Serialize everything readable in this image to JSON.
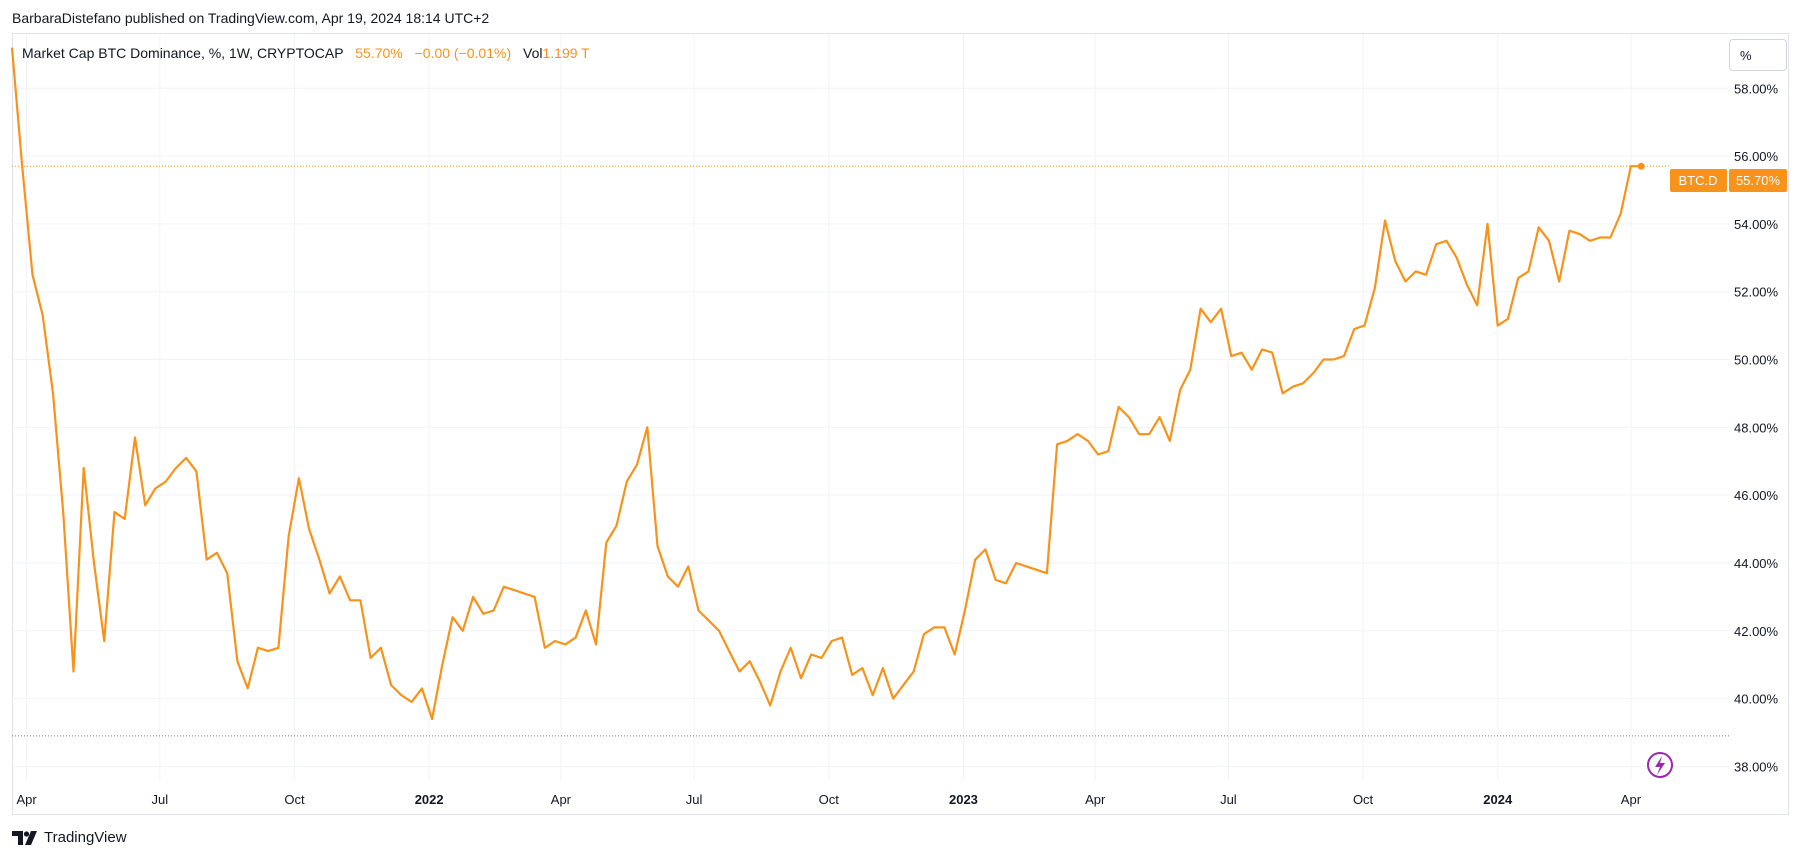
{
  "header": {
    "publisher": "BarbaraDistefano published on TradingView.com, Apr 19, 2024 18:14 UTC+2"
  },
  "legend": {
    "symbol": "Market Cap BTC Dominance, %, 1W, CRYPTOCAP",
    "value": "55.70%",
    "change": "−0.00 (−0.01%)",
    "vol_label": "Vol",
    "vol_value": "1.199 T"
  },
  "scale_button": {
    "label": "%"
  },
  "price_tag": {
    "symbol": "BTC.D",
    "value": "55.70%"
  },
  "footer": {
    "brand": "TradingView"
  },
  "colors": {
    "line": "#f7931a",
    "grid": "#f0f3fa",
    "tag": "#f7931a"
  },
  "icons": {
    "brand_logo": "tradingview-logo-icon",
    "lightning": "lightning-icon"
  },
  "chart_data": {
    "type": "line",
    "title": "Market Cap BTC Dominance, %, 1W, CRYPTOCAP",
    "xlabel": "",
    "ylabel": "",
    "ylim": [
      37.6,
      59.6
    ],
    "y_ticks": [
      {
        "v": 58,
        "label": "58.00%"
      },
      {
        "v": 56,
        "label": "56.00%"
      },
      {
        "v": 54,
        "label": "54.00%"
      },
      {
        "v": 52,
        "label": "52.00%"
      },
      {
        "v": 50,
        "label": "50.00%"
      },
      {
        "v": 48,
        "label": "48.00%"
      },
      {
        "v": 46,
        "label": "46.00%"
      },
      {
        "v": 44,
        "label": "44.00%"
      },
      {
        "v": 42,
        "label": "42.00%"
      },
      {
        "v": 40,
        "label": "40.00%"
      },
      {
        "v": 38,
        "label": "38.00%"
      }
    ],
    "x_ticks": [
      {
        "label": "Apr",
        "date": "2021-04-01",
        "bold": false
      },
      {
        "label": "Jul",
        "date": "2021-07-01",
        "bold": false
      },
      {
        "label": "Oct",
        "date": "2021-10-01",
        "bold": false
      },
      {
        "label": "2022",
        "date": "2022-01-01",
        "bold": true
      },
      {
        "label": "Apr",
        "date": "2022-04-01",
        "bold": false
      },
      {
        "label": "Jul",
        "date": "2022-07-01",
        "bold": false
      },
      {
        "label": "Oct",
        "date": "2022-10-01",
        "bold": false
      },
      {
        "label": "2023",
        "date": "2023-01-01",
        "bold": true
      },
      {
        "label": "Apr",
        "date": "2023-04-01",
        "bold": false
      },
      {
        "label": "Jul",
        "date": "2023-07-01",
        "bold": false
      },
      {
        "label": "Oct",
        "date": "2023-10-01",
        "bold": false
      },
      {
        "label": "2024",
        "date": "2024-01-01",
        "bold": true
      },
      {
        "label": "Apr",
        "date": "2024-04-01",
        "bold": false
      }
    ],
    "xlim": [
      "2021-03-22",
      "2024-06-07"
    ],
    "current_value": 55.7,
    "low_reference": 38.9,
    "series": [
      {
        "values": [
          [
            "2021-03-22",
            59.2
          ],
          [
            "2021-03-29",
            55.7
          ],
          [
            "2021-04-05",
            52.5
          ],
          [
            "2021-04-12",
            51.3
          ],
          [
            "2021-04-19",
            49.0
          ],
          [
            "2021-04-26",
            45.5
          ],
          [
            "2021-05-03",
            40.8
          ],
          [
            "2021-05-10",
            46.8
          ],
          [
            "2021-05-17",
            44.0
          ],
          [
            "2021-05-24",
            41.7
          ],
          [
            "2021-05-31",
            45.5
          ],
          [
            "2021-06-07",
            45.3
          ],
          [
            "2021-06-14",
            47.7
          ],
          [
            "2021-06-21",
            45.7
          ],
          [
            "2021-06-28",
            46.2
          ],
          [
            "2021-07-05",
            46.4
          ],
          [
            "2021-07-12",
            46.8
          ],
          [
            "2021-07-19",
            47.1
          ],
          [
            "2021-07-26",
            46.7
          ],
          [
            "2021-08-02",
            44.1
          ],
          [
            "2021-08-09",
            44.3
          ],
          [
            "2021-08-16",
            43.7
          ],
          [
            "2021-08-23",
            41.1
          ],
          [
            "2021-08-30",
            40.3
          ],
          [
            "2021-09-06",
            41.5
          ],
          [
            "2021-09-13",
            41.4
          ],
          [
            "2021-09-20",
            41.5
          ],
          [
            "2021-09-27",
            44.8
          ],
          [
            "2021-10-04",
            46.5
          ],
          [
            "2021-10-11",
            45.0
          ],
          [
            "2021-10-18",
            44.1
          ],
          [
            "2021-10-25",
            43.1
          ],
          [
            "2021-11-01",
            43.6
          ],
          [
            "2021-11-08",
            42.9
          ],
          [
            "2021-11-15",
            42.9
          ],
          [
            "2021-11-22",
            41.2
          ],
          [
            "2021-11-29",
            41.5
          ],
          [
            "2021-12-06",
            40.4
          ],
          [
            "2021-12-13",
            40.1
          ],
          [
            "2021-12-20",
            39.9
          ],
          [
            "2021-12-27",
            40.3
          ],
          [
            "2022-01-03",
            39.4
          ],
          [
            "2022-01-10",
            41.0
          ],
          [
            "2022-01-17",
            42.4
          ],
          [
            "2022-01-24",
            42.0
          ],
          [
            "2022-01-31",
            43.0
          ],
          [
            "2022-02-07",
            42.5
          ],
          [
            "2022-02-14",
            42.6
          ],
          [
            "2022-02-21",
            43.3
          ],
          [
            "2022-02-28",
            43.2
          ],
          [
            "2022-03-07",
            43.1
          ],
          [
            "2022-03-14",
            43.0
          ],
          [
            "2022-03-21",
            41.5
          ],
          [
            "2022-03-28",
            41.7
          ],
          [
            "2022-04-04",
            41.6
          ],
          [
            "2022-04-11",
            41.8
          ],
          [
            "2022-04-18",
            42.6
          ],
          [
            "2022-04-25",
            41.6
          ],
          [
            "2022-05-02",
            44.6
          ],
          [
            "2022-05-09",
            45.1
          ],
          [
            "2022-05-16",
            46.4
          ],
          [
            "2022-05-23",
            46.9
          ],
          [
            "2022-05-30",
            48.0
          ],
          [
            "2022-06-06",
            44.5
          ],
          [
            "2022-06-13",
            43.6
          ],
          [
            "2022-06-20",
            43.3
          ],
          [
            "2022-06-27",
            43.9
          ],
          [
            "2022-07-04",
            42.6
          ],
          [
            "2022-07-11",
            42.3
          ],
          [
            "2022-07-18",
            42.0
          ],
          [
            "2022-07-25",
            41.4
          ],
          [
            "2022-08-01",
            40.8
          ],
          [
            "2022-08-08",
            41.1
          ],
          [
            "2022-08-15",
            40.5
          ],
          [
            "2022-08-22",
            39.8
          ],
          [
            "2022-08-29",
            40.8
          ],
          [
            "2022-09-05",
            41.5
          ],
          [
            "2022-09-12",
            40.6
          ],
          [
            "2022-09-19",
            41.3
          ],
          [
            "2022-09-26",
            41.2
          ],
          [
            "2022-10-03",
            41.7
          ],
          [
            "2022-10-10",
            41.8
          ],
          [
            "2022-10-17",
            40.7
          ],
          [
            "2022-10-24",
            40.9
          ],
          [
            "2022-10-31",
            40.1
          ],
          [
            "2022-11-07",
            40.9
          ],
          [
            "2022-11-14",
            40.0
          ],
          [
            "2022-11-21",
            40.4
          ],
          [
            "2022-11-28",
            40.8
          ],
          [
            "2022-12-05",
            41.9
          ],
          [
            "2022-12-12",
            42.1
          ],
          [
            "2022-12-19",
            42.1
          ],
          [
            "2022-12-26",
            41.3
          ],
          [
            "2023-01-02",
            42.6
          ],
          [
            "2023-01-09",
            44.1
          ],
          [
            "2023-01-16",
            44.4
          ],
          [
            "2023-01-23",
            43.5
          ],
          [
            "2023-01-30",
            43.4
          ],
          [
            "2023-02-06",
            44.0
          ],
          [
            "2023-02-13",
            43.9
          ],
          [
            "2023-02-20",
            43.8
          ],
          [
            "2023-02-27",
            43.7
          ],
          [
            "2023-03-06",
            47.5
          ],
          [
            "2023-03-13",
            47.6
          ],
          [
            "2023-03-20",
            47.8
          ],
          [
            "2023-03-27",
            47.6
          ],
          [
            "2023-04-03",
            47.2
          ],
          [
            "2023-04-10",
            47.3
          ],
          [
            "2023-04-17",
            48.6
          ],
          [
            "2023-04-24",
            48.3
          ],
          [
            "2023-05-01",
            47.8
          ],
          [
            "2023-05-08",
            47.8
          ],
          [
            "2023-05-15",
            48.3
          ],
          [
            "2023-05-22",
            47.6
          ],
          [
            "2023-05-29",
            49.1
          ],
          [
            "2023-06-05",
            49.7
          ],
          [
            "2023-06-12",
            51.5
          ],
          [
            "2023-06-19",
            51.1
          ],
          [
            "2023-06-26",
            51.5
          ],
          [
            "2023-07-03",
            50.1
          ],
          [
            "2023-07-10",
            50.2
          ],
          [
            "2023-07-17",
            49.7
          ],
          [
            "2023-07-24",
            50.3
          ],
          [
            "2023-07-31",
            50.2
          ],
          [
            "2023-08-07",
            49.0
          ],
          [
            "2023-08-14",
            49.2
          ],
          [
            "2023-08-21",
            49.3
          ],
          [
            "2023-08-28",
            49.6
          ],
          [
            "2023-09-04",
            50.0
          ],
          [
            "2023-09-11",
            50.0
          ],
          [
            "2023-09-18",
            50.1
          ],
          [
            "2023-09-25",
            50.9
          ],
          [
            "2023-10-02",
            51.0
          ],
          [
            "2023-10-09",
            52.1
          ],
          [
            "2023-10-16",
            54.1
          ],
          [
            "2023-10-23",
            52.9
          ],
          [
            "2023-10-30",
            52.3
          ],
          [
            "2023-11-06",
            52.6
          ],
          [
            "2023-11-13",
            52.5
          ],
          [
            "2023-11-20",
            53.4
          ],
          [
            "2023-11-27",
            53.5
          ],
          [
            "2023-12-04",
            53.0
          ],
          [
            "2023-12-11",
            52.2
          ],
          [
            "2023-12-18",
            51.6
          ],
          [
            "2023-12-25",
            54.0
          ],
          [
            "2024-01-01",
            51.0
          ],
          [
            "2024-01-08",
            51.2
          ],
          [
            "2024-01-15",
            52.4
          ],
          [
            "2024-01-22",
            52.6
          ],
          [
            "2024-01-29",
            53.9
          ],
          [
            "2024-02-05",
            53.5
          ],
          [
            "2024-02-12",
            52.3
          ],
          [
            "2024-02-19",
            53.8
          ],
          [
            "2024-02-26",
            53.7
          ],
          [
            "2024-03-04",
            53.5
          ],
          [
            "2024-03-11",
            53.6
          ],
          [
            "2024-03-18",
            53.6
          ],
          [
            "2024-03-25",
            54.3
          ],
          [
            "2024-04-01",
            55.7
          ],
          [
            "2024-04-08",
            55.7
          ]
        ]
      }
    ]
  }
}
